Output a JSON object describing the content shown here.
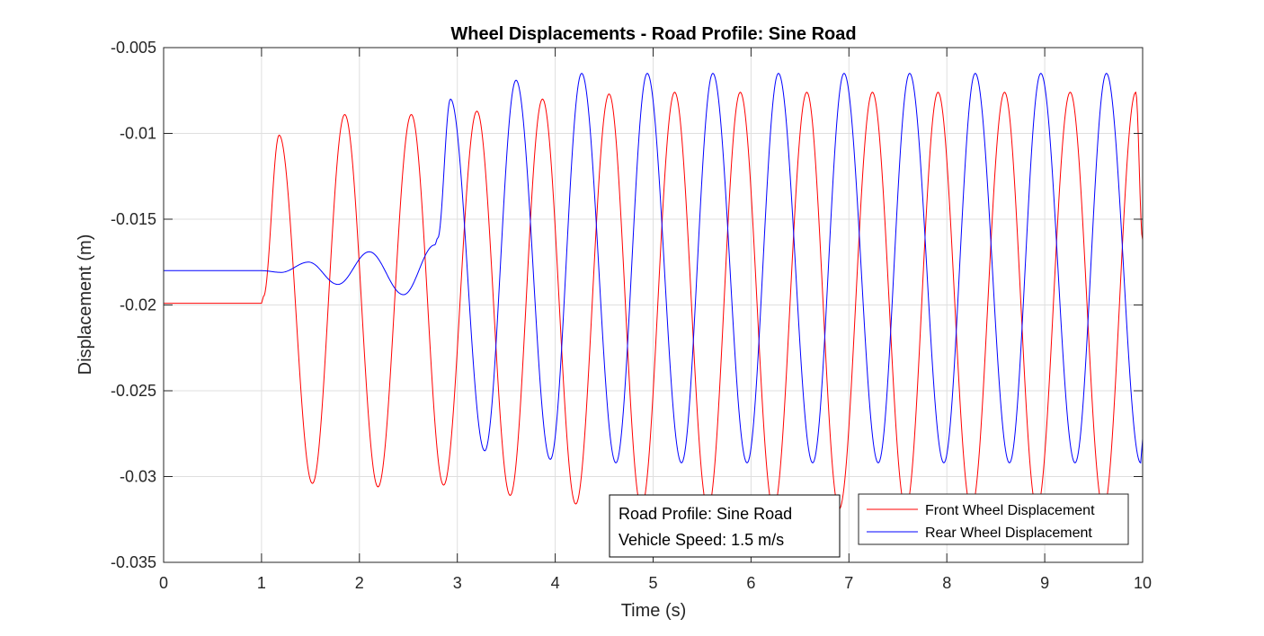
{
  "chart_data": {
    "type": "line",
    "title": "Wheel Displacements - Road Profile: Sine Road",
    "xlabel": "Time (s)",
    "ylabel": "Displacement (m)",
    "xlim": [
      0,
      10
    ],
    "ylim": [
      -0.035,
      -0.005
    ],
    "x_ticks": [
      0,
      1,
      2,
      3,
      4,
      5,
      6,
      7,
      8,
      9,
      10
    ],
    "x_tick_labels": [
      "0",
      "1",
      "2",
      "3",
      "4",
      "5",
      "6",
      "7",
      "8",
      "9",
      "10"
    ],
    "y_ticks": [
      -0.035,
      -0.03,
      -0.025,
      -0.02,
      -0.015,
      -0.01,
      -0.005
    ],
    "y_tick_labels": [
      "-0.035",
      "-0.03",
      "-0.025",
      "-0.02",
      "-0.015",
      "-0.01",
      "-0.005"
    ],
    "grid": true,
    "legend_position": "bottom-right",
    "series": [
      {
        "name": "Front Wheel Displacement",
        "color": "#ff0000",
        "x": [
          0,
          1.0,
          1.02,
          1.18,
          1.52,
          1.85,
          2.19,
          2.53,
          2.86,
          3.2,
          3.54,
          3.87,
          4.21,
          4.55,
          4.88,
          5.22,
          5.56,
          5.89,
          6.23,
          6.57,
          6.9,
          7.24,
          7.58,
          7.91,
          8.25,
          8.59,
          8.92,
          9.26,
          9.6,
          9.93,
          10.0
        ],
        "y": [
          -0.0199,
          -0.0199,
          -0.0195,
          -0.0101,
          -0.0304,
          -0.0089,
          -0.0306,
          -0.0089,
          -0.0305,
          -0.0087,
          -0.0311,
          -0.008,
          -0.0316,
          -0.0077,
          -0.0318,
          -0.0076,
          -0.0319,
          -0.0076,
          -0.0319,
          -0.0076,
          -0.0319,
          -0.0076,
          -0.0319,
          -0.0076,
          -0.0319,
          -0.0076,
          -0.0319,
          -0.0076,
          -0.0319,
          -0.0076,
          -0.0162
        ]
      },
      {
        "name": "Rear Wheel Displacement",
        "color": "#0000ff",
        "x": [
          0,
          1.0,
          1.2,
          1.48,
          1.78,
          2.1,
          2.45,
          2.77,
          2.8,
          2.93,
          3.28,
          3.6,
          3.95,
          4.27,
          4.62,
          4.94,
          5.29,
          5.61,
          5.96,
          6.28,
          6.63,
          6.95,
          7.3,
          7.62,
          7.97,
          8.29,
          8.64,
          8.96,
          9.31,
          9.63,
          9.98,
          10.0
        ],
        "y": [
          -0.018,
          -0.018,
          -0.0181,
          -0.0175,
          -0.0188,
          -0.0169,
          -0.0194,
          -0.0165,
          -0.0161,
          -0.008,
          -0.0285,
          -0.0069,
          -0.029,
          -0.0065,
          -0.0292,
          -0.0065,
          -0.0292,
          -0.0065,
          -0.0292,
          -0.0065,
          -0.0292,
          -0.0065,
          -0.0292,
          -0.0065,
          -0.0292,
          -0.0065,
          -0.0292,
          -0.0065,
          -0.0292,
          -0.0065,
          -0.0292,
          -0.0278
        ]
      }
    ],
    "annotation": {
      "line1": "Road Profile: Sine Road",
      "line2": "Vehicle Speed: 1.5 m/s"
    }
  }
}
